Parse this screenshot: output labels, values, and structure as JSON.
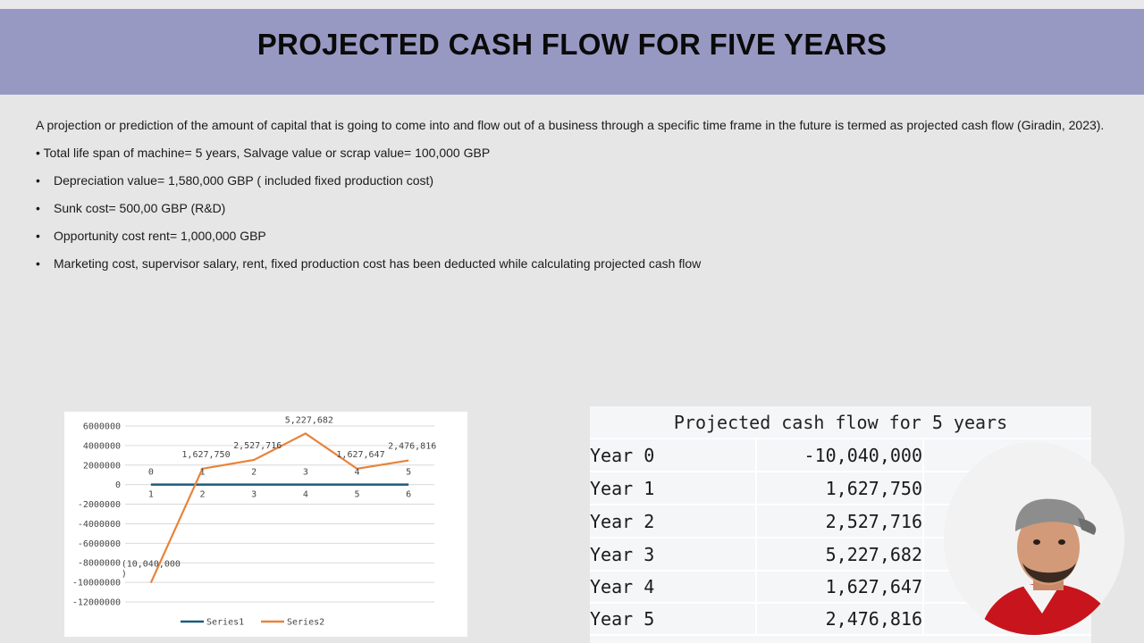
{
  "title": "PROJECTED CASH FLOW FOR FIVE YEARS",
  "intro": "A projection or prediction of the amount of capital that is going to come into and flow out of a business through a specific time frame in the future is termed as projected cash flow (Giradin, 2023).",
  "bullets": [
    "• Total life span of machine= 5 years, Salvage value or scrap value= 100,000 GBP",
    "Depreciation value= 1,580,000 GBP ( included fixed production cost)",
    "Sunk cost= 500,00 GBP (R&D)",
    "Opportunity cost rent= 1,000,000 GBP",
    "Marketing cost, supervisor salary, rent, fixed production cost has been deducted while calculating projected cash flow"
  ],
  "chart_data": {
    "type": "line",
    "x": [
      1,
      2,
      3,
      4,
      5,
      6
    ],
    "x_tick_labels": [
      "1",
      "2",
      "3",
      "4",
      "5",
      "6"
    ],
    "y_ticks": [
      "6000000",
      "4000000",
      "2000000",
      "0",
      "-2000000",
      "-4000000",
      "-6000000",
      "-8000000",
      "-10000000",
      "-12000000"
    ],
    "ylim": [
      -12000000,
      6000000
    ],
    "grid": true,
    "legend_position": "bottom",
    "series": [
      {
        "name": "Series1",
        "color": "#1f5a7a",
        "values": [
          0,
          0,
          0,
          0,
          0,
          0
        ],
        "data_labels": [
          "0",
          "1",
          "2",
          "3",
          "4",
          "5"
        ]
      },
      {
        "name": "Series2",
        "color": "#e8833a",
        "values": [
          -10040000,
          1627750,
          2527716,
          5227682,
          1627647,
          2476816
        ],
        "data_labels": [
          "(10,040,000\n)",
          "1,627,750",
          "2,527,716",
          "5,227,682",
          "1,627,647",
          "2,476,816"
        ]
      }
    ]
  },
  "table": {
    "title": "Projected cash flow for 5 years",
    "rows": [
      {
        "label": "Year 0",
        "value": "-10,040,000"
      },
      {
        "label": "Year 1",
        "value": "1,627,750"
      },
      {
        "label": "Year 2",
        "value": "2,527,716"
      },
      {
        "label": "Year 3",
        "value": "5,227,682"
      },
      {
        "label": "Year 4",
        "value": "1,627,647"
      },
      {
        "label": "Year 5",
        "value": "2,476,816"
      }
    ]
  },
  "webcam_icon": "presenter-webcam-icon"
}
